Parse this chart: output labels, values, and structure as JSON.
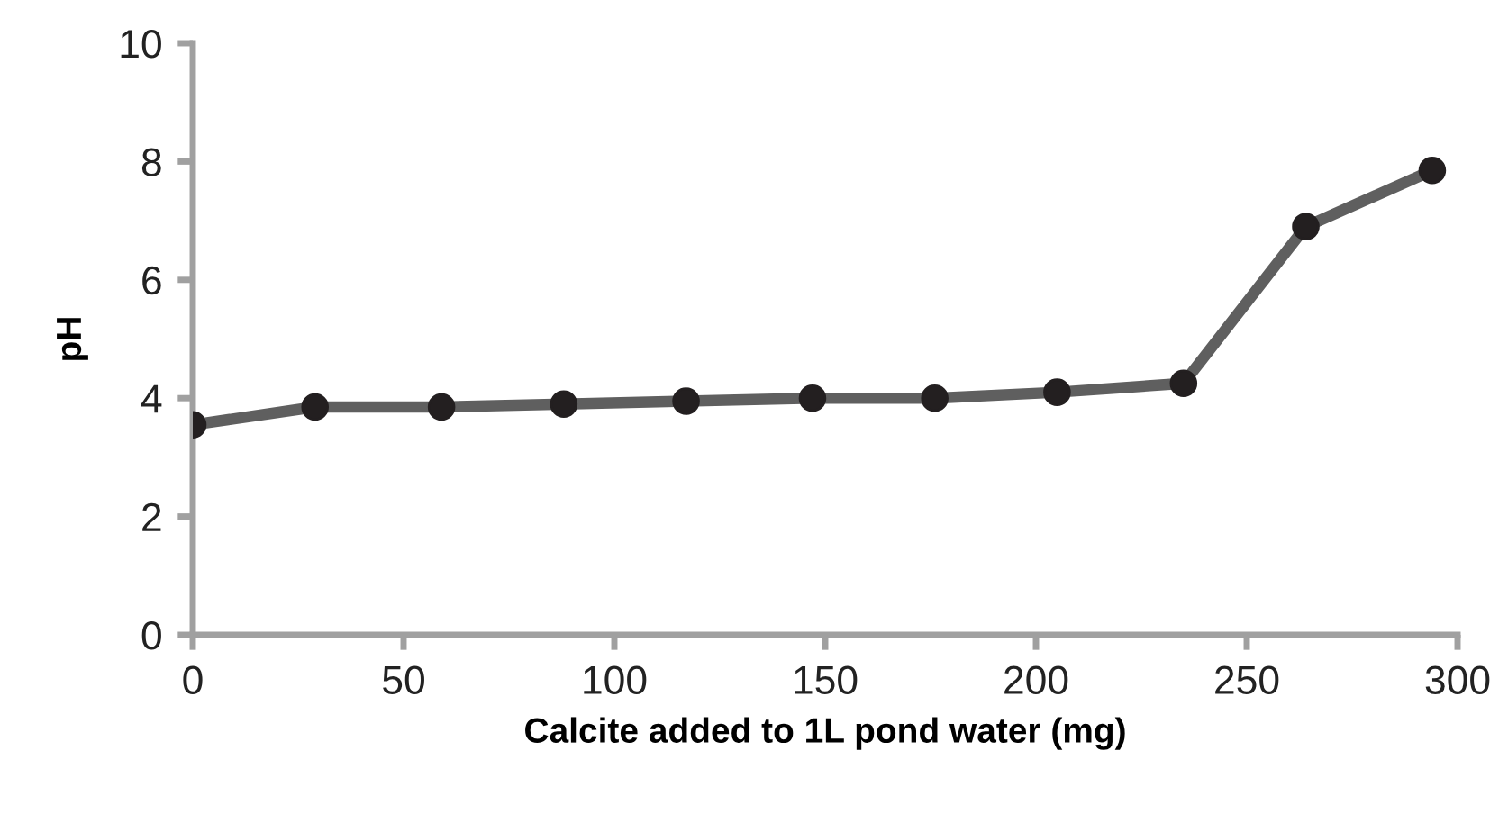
{
  "chart_data": {
    "type": "line",
    "xlabel": "Calcite added to 1L pond water (mg)",
    "ylabel": "pH",
    "x": [
      0,
      29,
      59,
      88,
      117,
      147,
      176,
      205,
      235,
      264,
      294
    ],
    "series": [
      {
        "color": "#5f5f5f",
        "values": [
          3.55,
          3.85,
          3.85,
          3.9,
          3.95,
          4.0,
          4.0,
          4.1,
          4.25,
          6.9,
          7.85
        ]
      }
    ],
    "marker": "circle",
    "line_style": "solid",
    "xlim": [
      0,
      300
    ],
    "xticks": [
      0,
      50,
      100,
      150,
      200,
      250,
      300
    ],
    "ylim": [
      0,
      10
    ],
    "yticks": [
      0,
      2,
      4,
      6,
      8,
      10
    ],
    "grid": false,
    "legend": false
  }
}
